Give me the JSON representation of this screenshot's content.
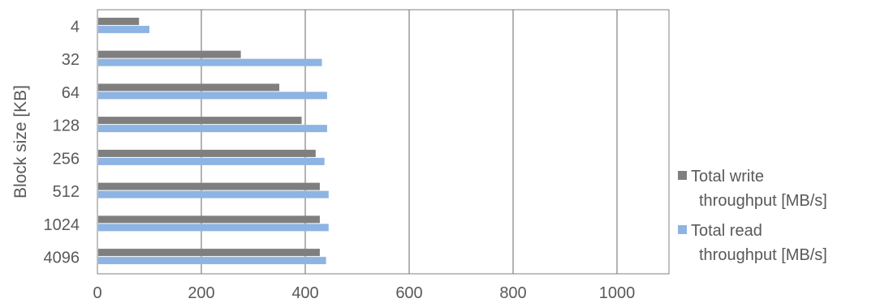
{
  "chart_data": {
    "type": "bar",
    "orientation": "horizontal",
    "title": "",
    "ylabel": "Block size [KB]",
    "xlabel": "",
    "categories": [
      "4",
      "32",
      "64",
      "128",
      "256",
      "512",
      "1024",
      "4096"
    ],
    "series": [
      {
        "name": "Total write throughput [MB/s]",
        "legend_lines": [
          "Total write",
          "throughput [MB/s]"
        ],
        "color": "#7f7f7f",
        "values": [
          80,
          276,
          350,
          393,
          420,
          428,
          428,
          428
        ]
      },
      {
        "name": "Total read throughput [MB/s]",
        "legend_lines": [
          "Total read",
          "throughput [MB/s]"
        ],
        "color": "#8db4e2",
        "values": [
          100,
          432,
          442,
          442,
          437,
          445,
          445,
          440
        ]
      }
    ],
    "xlim": [
      0,
      1100
    ],
    "xticks": [
      "0",
      "200",
      "400",
      "600",
      "800",
      "1000"
    ],
    "grid": "vertical",
    "legend_position": "right"
  }
}
